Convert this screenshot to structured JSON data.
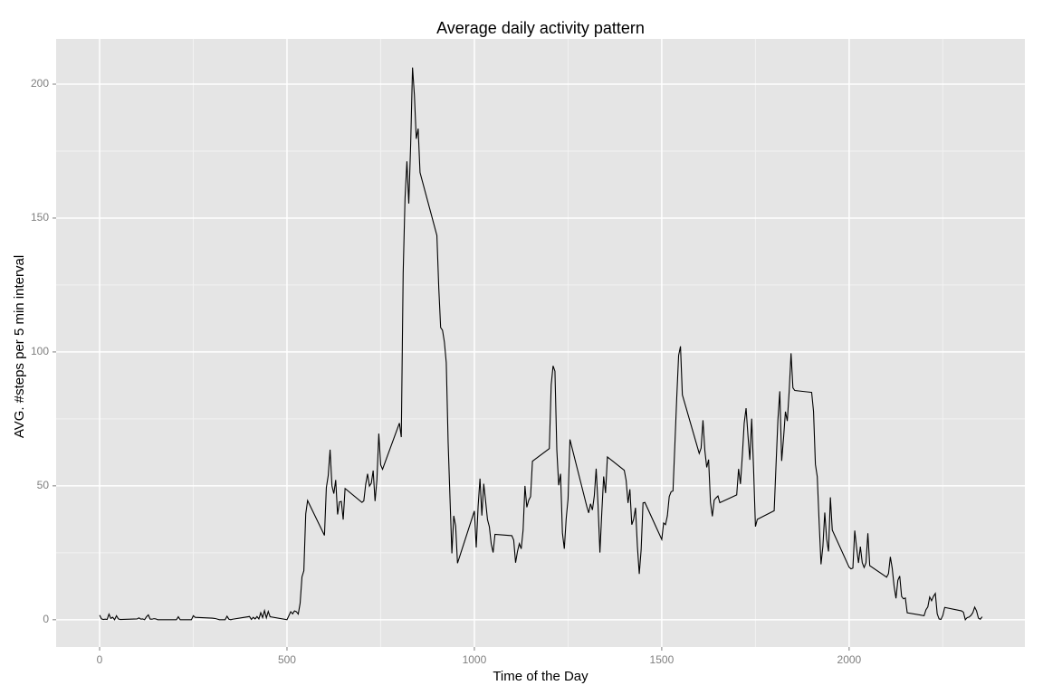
{
  "chart_data": {
    "type": "line",
    "title": "Average daily activity pattern",
    "x_label": "Time of the Day",
    "y_label": "AVG. #steps per 5 min interval",
    "xlim": [
      -116,
      2469
    ],
    "ylim": [
      -10.2,
      216.9
    ],
    "xticks": [
      0,
      500,
      1000,
      1500,
      2000
    ],
    "yticks": [
      0,
      50,
      100,
      150,
      200
    ],
    "grid": true,
    "color": "#000000",
    "x": [
      0,
      5,
      10,
      15,
      20,
      25,
      30,
      35,
      40,
      45,
      50,
      55,
      100,
      105,
      110,
      115,
      120,
      125,
      130,
      135,
      140,
      145,
      150,
      155,
      200,
      205,
      210,
      215,
      220,
      225,
      230,
      235,
      240,
      245,
      250,
      255,
      300,
      305,
      310,
      315,
      320,
      325,
      330,
      335,
      340,
      345,
      350,
      355,
      400,
      405,
      410,
      415,
      420,
      425,
      430,
      435,
      440,
      445,
      450,
      455,
      500,
      505,
      510,
      515,
      520,
      525,
      530,
      535,
      540,
      545,
      550,
      555,
      600,
      605,
      610,
      615,
      620,
      625,
      630,
      635,
      640,
      645,
      650,
      655,
      700,
      705,
      710,
      715,
      720,
      725,
      730,
      735,
      740,
      745,
      750,
      755,
      800,
      805,
      810,
      815,
      820,
      825,
      830,
      835,
      840,
      845,
      850,
      855,
      900,
      905,
      910,
      915,
      920,
      925,
      930,
      935,
      940,
      945,
      950,
      955,
      1000,
      1005,
      1010,
      1015,
      1020,
      1025,
      1030,
      1035,
      1040,
      1045,
      1050,
      1055,
      1100,
      1105,
      1110,
      1115,
      1120,
      1125,
      1130,
      1135,
      1140,
      1145,
      1150,
      1155,
      1200,
      1205,
      1210,
      1215,
      1220,
      1225,
      1230,
      1235,
      1240,
      1245,
      1250,
      1255,
      1300,
      1305,
      1310,
      1315,
      1320,
      1325,
      1330,
      1335,
      1340,
      1345,
      1350,
      1355,
      1400,
      1405,
      1410,
      1415,
      1420,
      1425,
      1430,
      1435,
      1440,
      1445,
      1450,
      1455,
      1500,
      1505,
      1510,
      1515,
      1520,
      1525,
      1530,
      1535,
      1540,
      1545,
      1550,
      1555,
      1600,
      1605,
      1610,
      1615,
      1620,
      1625,
      1630,
      1635,
      1640,
      1645,
      1650,
      1655,
      1700,
      1705,
      1710,
      1715,
      1720,
      1725,
      1730,
      1735,
      1740,
      1745,
      1750,
      1755,
      1800,
      1805,
      1810,
      1815,
      1820,
      1825,
      1830,
      1835,
      1840,
      1845,
      1850,
      1855,
      1900,
      1905,
      1910,
      1915,
      1920,
      1925,
      1930,
      1935,
      1940,
      1945,
      1950,
      1955,
      2000,
      2005,
      2010,
      2015,
      2020,
      2025,
      2030,
      2035,
      2040,
      2045,
      2050,
      2055,
      2100,
      2105,
      2110,
      2115,
      2120,
      2125,
      2130,
      2135,
      2140,
      2145,
      2150,
      2155,
      2200,
      2205,
      2210,
      2215,
      2220,
      2225,
      2230,
      2235,
      2240,
      2245,
      2250,
      2255,
      2300,
      2305,
      2310,
      2315,
      2320,
      2325,
      2330,
      2335,
      2340,
      2345,
      2350,
      2355
    ],
    "values": [
      1.7,
      0.3,
      0.1,
      0.2,
      0.1,
      2.1,
      0.5,
      0.9,
      0,
      1.5,
      0.3,
      0.1,
      0.3,
      0.7,
      0.2,
      0.3,
      0,
      1.1,
      1.8,
      0.2,
      0.2,
      0.4,
      0.3,
      0,
      0,
      0,
      1.1,
      0,
      0,
      0,
      0,
      0,
      0,
      0,
      1.5,
      0.9,
      0.6,
      0.5,
      0.4,
      0.2,
      0,
      0,
      0,
      0,
      1.3,
      0.2,
      0,
      0.2,
      1.2,
      0.1,
      0.9,
      0.3,
      1.2,
      0.3,
      2.6,
      0.8,
      3.4,
      0.7,
      3.1,
      1.1,
      0,
      1.5,
      3.0,
      2.2,
      3.3,
      3.0,
      2.1,
      6.1,
      16.0,
      18.3,
      39.5,
      44.5,
      31.5,
      49.3,
      53.8,
      63.5,
      50.0,
      47.1,
      52.2,
      39.3,
      44.0,
      44.2,
      37.4,
      49.0,
      43.8,
      44.4,
      50.5,
      54.5,
      49.9,
      51.0,
      55.7,
      44.3,
      52.3,
      69.5,
      57.8,
      56.2,
      73.4,
      68.2,
      129.4,
      157.5,
      171.2,
      155.4,
      177.3,
      206.2,
      195.9,
      179.6,
      183.4,
      167.0,
      143.5,
      124.0,
      109.1,
      108.1,
      103.7,
      96.0,
      66.2,
      45.2,
      24.8,
      38.8,
      35.0,
      21.1,
      40.6,
      27.0,
      42.4,
      52.7,
      38.9,
      50.8,
      44.3,
      37.4,
      34.7,
      28.3,
      25.1,
      31.9,
      31.4,
      29.7,
      21.3,
      25.5,
      28.4,
      26.5,
      33.4,
      50.0,
      42.0,
      44.6,
      46.0,
      59.2,
      63.9,
      87.7,
      94.8,
      92.8,
      63.4,
      50.2,
      54.5,
      32.4,
      26.5,
      37.7,
      45.1,
      67.3,
      42.3,
      39.9,
      43.3,
      41.0,
      46.2,
      56.4,
      42.8,
      25.1,
      40.0,
      53.5,
      47.3,
      60.8,
      55.8,
      52.0,
      43.6,
      48.7,
      35.5,
      37.5,
      41.8,
      27.5,
      17.1,
      26.1,
      43.6,
      43.8,
      30.0,
      36.1,
      35.5,
      38.8,
      46.0,
      47.8,
      48.1,
      65.3,
      82.9,
      98.7,
      102.1,
      84.0,
      62.1,
      64.1,
      74.5,
      63.2,
      56.9,
      59.8,
      43.9,
      38.6,
      44.7,
      45.5,
      46.2,
      43.7,
      46.6,
      56.3,
      50.7,
      61.2,
      73.4,
      79.0,
      68.9,
      59.7,
      75.1,
      56.5,
      34.8,
      37.5,
      40.7,
      58.0,
      74.7,
      85.3,
      59.3,
      67.8,
      77.7,
      74.2,
      85.3,
      99.5,
      86.6,
      85.6,
      84.9,
      77.8,
      58.0,
      53.4,
      36.3,
      20.7,
      27.4,
      40.0,
      30.2,
      25.5,
      45.7,
      33.5,
      19.6,
      19.0,
      19.3,
      33.3,
      26.8,
      21.2,
      27.3,
      21.3,
      19.5,
      21.3,
      32.3,
      20.2,
      15.9,
      17.2,
      23.5,
      19.2,
      12.5,
      8.0,
      14.7,
      16.3,
      8.7,
      7.8,
      8.1,
      2.6,
      1.5,
      3.7,
      4.8,
      8.5,
      7.1,
      8.7,
      9.8,
      2.2,
      0.3,
      0.1,
      1.6,
      4.6,
      3.3,
      2.8,
      0,
      0.8,
      1.0,
      1.6,
      2.6,
      4.7,
      3.3,
      0.6,
      0.2,
      1.1
    ]
  }
}
